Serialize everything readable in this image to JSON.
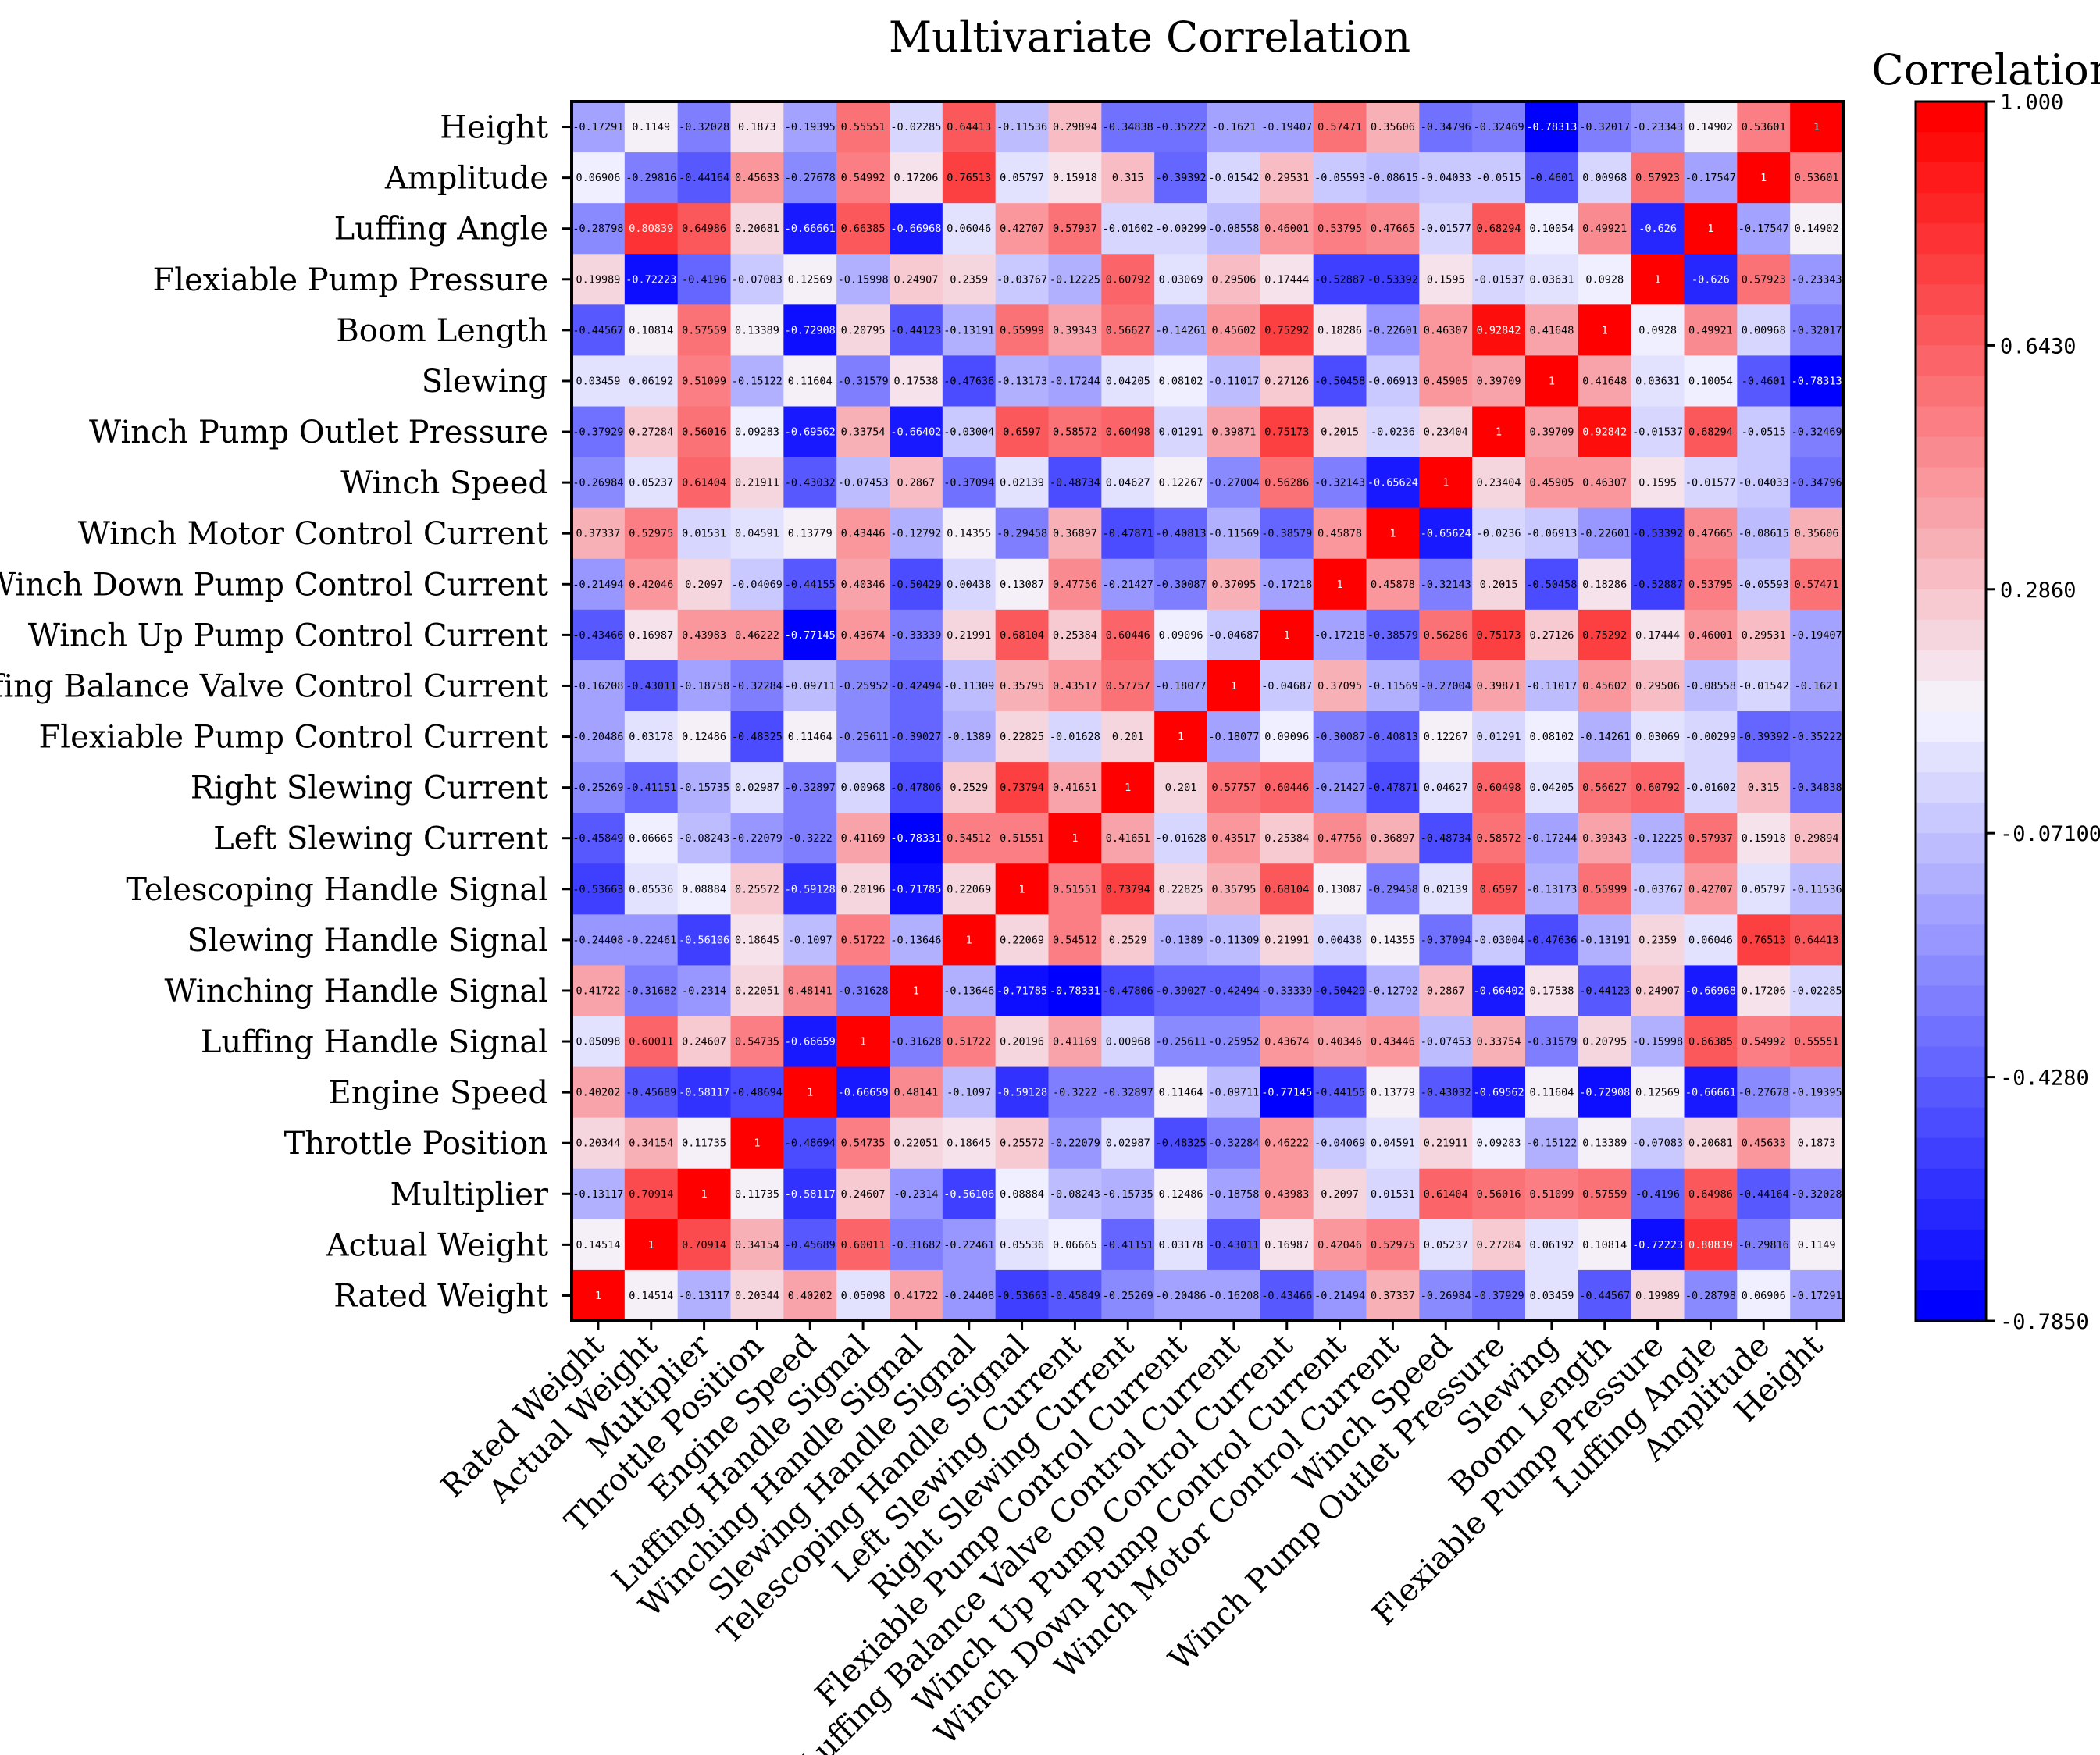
{
  "chart_data": {
    "type": "heatmap",
    "title": "Multivariate Correlation",
    "colorbar": {
      "title": "Correlation",
      "min": -0.785,
      "max": 1.0,
      "ticks": [
        1.0,
        0.643,
        0.286,
        -0.071,
        -0.428,
        -0.785
      ],
      "tick_labels": [
        "1.000",
        "0.6430",
        "0.2860",
        "-0.07100",
        "-0.4280",
        "-0.7850"
      ],
      "colors": {
        "low": "#0000ff",
        "mid": "#f5f5ff",
        "high": "#ff0000"
      }
    },
    "x_labels": [
      "Rated Weight",
      "Actual Weight",
      "Multiplier",
      "Throttle Position",
      "Engine Speed",
      "Luffing Handle Signal",
      "Winching Handle Signal",
      "Slewing Handle Signal",
      "Telescoping Handle Signal",
      "Left Slewing Current",
      "Right Slewing Current",
      "Flexiable Pump Control Current",
      "Luffing Balance Valve Control Current",
      "Winch Up Pump Control Current",
      "Winch Down Pump Control Current",
      "Winch Motor Control Current",
      "Winch Speed",
      "Winch Pump Outlet Pressure",
      "Slewing",
      "Boom Length",
      "Flexiable Pump Pressure",
      "Luffing Angle",
      "Amplitude",
      "Height"
    ],
    "y_labels_top_to_bottom": [
      "Height",
      "Amplitude",
      "Luffing Angle",
      "Flexiable Pump Pressure",
      "Boom Length",
      "Slewing",
      "Winch Pump Outlet Pressure",
      "Winch Speed",
      "Winch Motor Control Current",
      "Winch Down Pump Control Current",
      "Winch Up Pump Control Current",
      "Luffing Balance Valve Control Current",
      "Flexiable Pump Control Current",
      "Right Slewing Current",
      "Left Slewing Current",
      "Telescoping Handle Signal",
      "Slewing Handle Signal",
      "Winching Handle Signal",
      "Luffing Handle Signal",
      "Engine Speed",
      "Throttle Position",
      "Multiplier",
      "Actual Weight",
      "Rated Weight"
    ],
    "matrix_rows_top_to_bottom": [
      [
        -0.17291,
        0.1149,
        -0.32028,
        0.1873,
        -0.19395,
        0.55551,
        -0.02285,
        0.64413,
        -0.11536,
        0.29894,
        -0.34838,
        -0.35222,
        -0.1621,
        -0.19407,
        0.57471,
        0.35606,
        -0.34796,
        -0.32469,
        -0.78313,
        -0.32017,
        -0.23343,
        0.14902,
        0.53601,
        1
      ],
      [
        0.06906,
        -0.29816,
        -0.44164,
        0.45633,
        -0.27678,
        0.54992,
        0.17206,
        0.76513,
        0.05797,
        0.15918,
        0.315,
        -0.39392,
        -0.01542,
        0.29531,
        -0.05593,
        -0.08615,
        -0.04033,
        -0.0515,
        -0.4601,
        0.00968,
        0.57923,
        -0.17547,
        1,
        0.53601
      ],
      [
        -0.28798,
        0.80839,
        0.64986,
        0.20681,
        -0.66661,
        0.66385,
        -0.66968,
        0.06046,
        0.42707,
        0.57937,
        -0.01602,
        -0.00299,
        -0.08558,
        0.46001,
        0.53795,
        0.47665,
        -0.01577,
        0.68294,
        0.10054,
        0.49921,
        -0.626,
        1,
        -0.17547,
        0.14902
      ],
      [
        0.19989,
        -0.72223,
        -0.4196,
        -0.07083,
        0.12569,
        -0.15998,
        0.24907,
        0.2359,
        -0.03767,
        -0.12225,
        0.60792,
        0.03069,
        0.29506,
        0.17444,
        -0.52887,
        -0.53392,
        0.1595,
        -0.01537,
        0.03631,
        0.0928,
        1,
        -0.626,
        0.57923,
        -0.23343
      ],
      [
        -0.44567,
        0.10814,
        0.57559,
        0.13389,
        -0.72908,
        0.20795,
        -0.44123,
        -0.13191,
        0.55999,
        0.39343,
        0.56627,
        -0.14261,
        0.45602,
        0.75292,
        0.18286,
        -0.22601,
        0.46307,
        0.92842,
        0.41648,
        1,
        0.0928,
        0.49921,
        0.00968,
        -0.32017
      ],
      [
        0.03459,
        0.06192,
        0.51099,
        -0.15122,
        0.11604,
        -0.31579,
        0.17538,
        -0.47636,
        -0.13173,
        -0.17244,
        0.04205,
        0.08102,
        -0.11017,
        0.27126,
        -0.50458,
        -0.06913,
        0.45905,
        0.39709,
        1,
        0.41648,
        0.03631,
        0.10054,
        -0.4601,
        -0.78313
      ],
      [
        -0.37929,
        0.27284,
        0.56016,
        0.09283,
        -0.69562,
        0.33754,
        -0.66402,
        -0.03004,
        0.6597,
        0.58572,
        0.60498,
        0.01291,
        0.39871,
        0.75173,
        0.2015,
        -0.0236,
        0.23404,
        1,
        0.39709,
        0.92842,
        -0.01537,
        0.68294,
        -0.0515,
        -0.32469
      ],
      [
        -0.26984,
        0.05237,
        0.61404,
        0.21911,
        -0.43032,
        -0.07453,
        0.2867,
        -0.37094,
        0.02139,
        -0.48734,
        0.04627,
        0.12267,
        -0.27004,
        0.56286,
        -0.32143,
        -0.65624,
        1,
        0.23404,
        0.45905,
        0.46307,
        0.1595,
        -0.01577,
        -0.04033,
        -0.34796
      ],
      [
        0.37337,
        0.52975,
        0.01531,
        0.04591,
        0.13779,
        0.43446,
        -0.12792,
        0.14355,
        -0.29458,
        0.36897,
        -0.47871,
        -0.40813,
        -0.11569,
        -0.38579,
        0.45878,
        1,
        -0.65624,
        -0.0236,
        -0.06913,
        -0.22601,
        -0.53392,
        0.47665,
        -0.08615,
        0.35606
      ],
      [
        -0.21494,
        0.42046,
        0.2097,
        -0.04069,
        -0.44155,
        0.40346,
        -0.50429,
        0.00438,
        0.13087,
        0.47756,
        -0.21427,
        -0.30087,
        0.37095,
        -0.17218,
        1,
        0.45878,
        -0.32143,
        0.2015,
        -0.50458,
        0.18286,
        -0.52887,
        0.53795,
        -0.05593,
        0.57471
      ],
      [
        -0.43466,
        0.16987,
        0.43983,
        0.46222,
        -0.77145,
        0.43674,
        -0.33339,
        0.21991,
        0.68104,
        0.25384,
        0.60446,
        0.09096,
        -0.04687,
        1,
        -0.17218,
        -0.38579,
        0.56286,
        0.75173,
        0.27126,
        0.75292,
        0.17444,
        0.46001,
        0.29531,
        -0.19407
      ],
      [
        -0.16208,
        -0.43011,
        -0.18758,
        -0.32284,
        -0.09711,
        -0.25952,
        -0.42494,
        -0.11309,
        0.35795,
        0.43517,
        0.57757,
        -0.18077,
        1,
        -0.04687,
        0.37095,
        -0.11569,
        -0.27004,
        0.39871,
        -0.11017,
        0.45602,
        0.29506,
        -0.08558,
        -0.01542,
        -0.1621
      ],
      [
        -0.20486,
        0.03178,
        0.12486,
        -0.48325,
        0.11464,
        -0.25611,
        -0.39027,
        -0.1389,
        0.22825,
        -0.01628,
        0.201,
        1,
        -0.18077,
        0.09096,
        -0.30087,
        -0.40813,
        0.12267,
        0.01291,
        0.08102,
        -0.14261,
        0.03069,
        -0.00299,
        -0.39392,
        -0.35222
      ],
      [
        -0.25269,
        -0.41151,
        -0.15735,
        0.02987,
        -0.32897,
        0.00968,
        -0.47806,
        0.2529,
        0.73794,
        0.41651,
        1,
        0.201,
        0.57757,
        0.60446,
        -0.21427,
        -0.47871,
        0.04627,
        0.60498,
        0.04205,
        0.56627,
        0.60792,
        -0.01602,
        0.315,
        -0.34838
      ],
      [
        -0.45849,
        0.06665,
        -0.08243,
        -0.22079,
        -0.3222,
        0.41169,
        -0.78331,
        0.54512,
        0.51551,
        1,
        0.41651,
        -0.01628,
        0.43517,
        0.25384,
        0.47756,
        0.36897,
        -0.48734,
        0.58572,
        -0.17244,
        0.39343,
        -0.12225,
        0.57937,
        0.15918,
        0.29894
      ],
      [
        -0.53663,
        0.05536,
        0.08884,
        0.25572,
        -0.59128,
        0.20196,
        -0.71785,
        0.22069,
        1,
        0.51551,
        0.73794,
        0.22825,
        0.35795,
        0.68104,
        0.13087,
        -0.29458,
        0.02139,
        0.6597,
        -0.13173,
        0.55999,
        -0.03767,
        0.42707,
        0.05797,
        -0.11536
      ],
      [
        -0.24408,
        -0.22461,
        -0.56106,
        0.18645,
        -0.1097,
        0.51722,
        -0.13646,
        1,
        0.22069,
        0.54512,
        0.2529,
        -0.1389,
        -0.11309,
        0.21991,
        0.00438,
        0.14355,
        -0.37094,
        -0.03004,
        -0.47636,
        -0.13191,
        0.2359,
        0.06046,
        0.76513,
        0.64413
      ],
      [
        0.41722,
        -0.31682,
        -0.2314,
        0.22051,
        0.48141,
        -0.31628,
        1,
        -0.13646,
        -0.71785,
        -0.78331,
        -0.47806,
        -0.39027,
        -0.42494,
        -0.33339,
        -0.50429,
        -0.12792,
        0.2867,
        -0.66402,
        0.17538,
        -0.44123,
        0.24907,
        -0.66968,
        0.17206,
        -0.02285
      ],
      [
        0.05098,
        0.60011,
        0.24607,
        0.54735,
        -0.66659,
        1,
        -0.31628,
        0.51722,
        0.20196,
        0.41169,
        0.00968,
        -0.25611,
        -0.25952,
        0.43674,
        0.40346,
        0.43446,
        -0.07453,
        0.33754,
        -0.31579,
        0.20795,
        -0.15998,
        0.66385,
        0.54992,
        0.55551
      ],
      [
        0.40202,
        -0.45689,
        -0.58117,
        -0.48694,
        1,
        -0.66659,
        0.48141,
        -0.1097,
        -0.59128,
        -0.3222,
        -0.32897,
        0.11464,
        -0.09711,
        -0.77145,
        -0.44155,
        0.13779,
        -0.43032,
        -0.69562,
        0.11604,
        -0.72908,
        0.12569,
        -0.66661,
        -0.27678,
        -0.19395
      ],
      [
        0.20344,
        0.34154,
        0.11735,
        1,
        -0.48694,
        0.54735,
        0.22051,
        0.18645,
        0.25572,
        -0.22079,
        0.02987,
        -0.48325,
        -0.32284,
        0.46222,
        -0.04069,
        0.04591,
        0.21911,
        0.09283,
        -0.15122,
        0.13389,
        -0.07083,
        0.20681,
        0.45633,
        0.1873
      ],
      [
        -0.13117,
        0.70914,
        1,
        0.11735,
        -0.58117,
        0.24607,
        -0.2314,
        -0.56106,
        0.08884,
        -0.08243,
        -0.15735,
        0.12486,
        -0.18758,
        0.43983,
        0.2097,
        0.01531,
        0.61404,
        0.56016,
        0.51099,
        0.57559,
        -0.4196,
        0.64986,
        -0.44164,
        -0.32028
      ],
      [
        0.14514,
        1,
        0.70914,
        0.34154,
        -0.45689,
        0.60011,
        -0.31682,
        -0.22461,
        0.05536,
        0.06665,
        -0.41151,
        0.03178,
        -0.43011,
        0.16987,
        0.42046,
        0.52975,
        0.05237,
        0.27284,
        0.06192,
        0.10814,
        -0.72223,
        0.80839,
        -0.29816,
        0.1149
      ],
      [
        1,
        0.14514,
        -0.13117,
        0.20344,
        0.40202,
        0.05098,
        0.41722,
        -0.24408,
        -0.53663,
        -0.45849,
        -0.25269,
        -0.20486,
        -0.16208,
        -0.43466,
        -0.21494,
        0.37337,
        -0.26984,
        -0.37929,
        0.03459,
        -0.44567,
        0.19989,
        -0.28798,
        0.06906,
        -0.17291
      ]
    ]
  }
}
